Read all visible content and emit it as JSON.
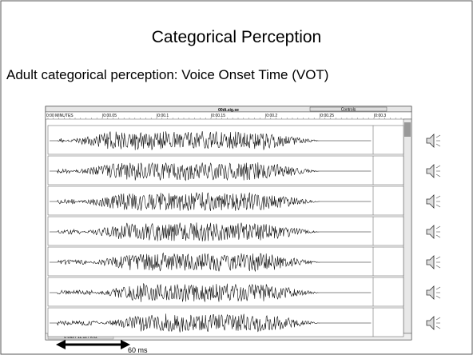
{
  "slide": {
    "title": "Categorical Perception",
    "subtitle": "Adult categorical perception: Voice Onset Time (VOT)"
  },
  "window": {
    "title": "00dt.sig.se",
    "ruler": [
      "0:00 MINUTES",
      "|0:00.05",
      "|0:00.1",
      "|0:00.15",
      "|0:00.2",
      "|0:00.25",
      "|0:00.3"
    ],
    "controls": "Controls",
    "status": "8 Bits / 11.127 kHz"
  },
  "scale_label": "60 ms"
}
